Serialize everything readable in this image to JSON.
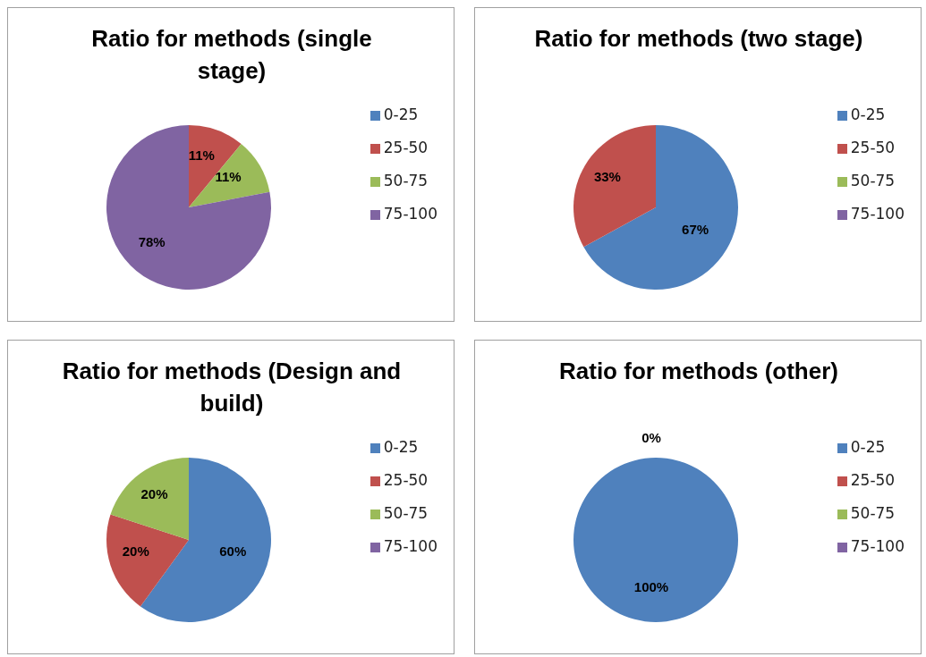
{
  "chart_data": [
    {
      "type": "pie",
      "title": "Ratio for methods (single stage)",
      "categories": [
        "0-25",
        "25-50",
        "50-75",
        "75-100"
      ],
      "values": [
        0,
        11,
        11,
        78
      ],
      "colors": [
        "#4f81bd",
        "#c0504d",
        "#9bbb59",
        "#8064a2"
      ],
      "value_labels": [
        null,
        "11%",
        "11%",
        "78%"
      ],
      "legend": "right"
    },
    {
      "type": "pie",
      "title": "Ratio for methods (two stage)",
      "categories": [
        "0-25",
        "25-50",
        "50-75",
        "75-100"
      ],
      "values": [
        67,
        33,
        0,
        0
      ],
      "colors": [
        "#4f81bd",
        "#c0504d",
        "#9bbb59",
        "#8064a2"
      ],
      "value_labels": [
        "67%",
        "33%",
        null,
        null
      ],
      "legend": "right"
    },
    {
      "type": "pie",
      "title": "Ratio for methods (Design and build)",
      "categories": [
        "0-25",
        "25-50",
        "50-75",
        "75-100"
      ],
      "values": [
        60,
        20,
        20,
        0
      ],
      "colors": [
        "#4f81bd",
        "#c0504d",
        "#9bbb59",
        "#8064a2"
      ],
      "value_labels": [
        "60%",
        "20%",
        "20%",
        null
      ],
      "legend": "right"
    },
    {
      "type": "pie",
      "title": "Ratio for methods (other)",
      "categories": [
        "0-25",
        "25-50",
        "50-75",
        "75-100"
      ],
      "values": [
        100,
        0,
        0,
        0
      ],
      "colors": [
        "#4f81bd",
        "#c0504d",
        "#9bbb59",
        "#8064a2"
      ],
      "value_labels": [
        "100%",
        "0%",
        null,
        null
      ],
      "legend": "right"
    }
  ]
}
